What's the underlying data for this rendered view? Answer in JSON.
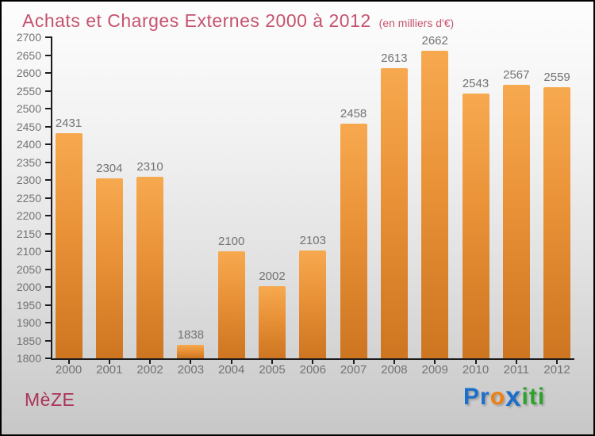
{
  "page": {
    "background_top": "#fdfdfd",
    "background_bottom": "#c7c7c7",
    "border_color": "#000000"
  },
  "header": {
    "title": "Achats et Charges Externes 2000 à 2012",
    "subtitle": "(en milliers d'€)",
    "title_color": "#c5536e"
  },
  "chart_data": {
    "type": "bar",
    "title": "Achats et Charges Externes 2000 à 2012",
    "subtitle": "(en milliers d'€)",
    "categories": [
      "2000",
      "2001",
      "2002",
      "2003",
      "2004",
      "2005",
      "2006",
      "2007",
      "2008",
      "2009",
      "2010",
      "2011",
      "2012"
    ],
    "values": [
      2431,
      2304,
      2310,
      1838,
      2100,
      2002,
      2103,
      2458,
      2613,
      2662,
      2543,
      2567,
      2559
    ],
    "xlabel": "",
    "ylabel": "",
    "ylim": [
      1800,
      2700
    ],
    "ytick_step": 50,
    "grid": false,
    "legend": "none",
    "bar_color_top": "#f7a94f",
    "bar_color_bottom": "#cd7520",
    "label_color": "#737373",
    "axis_color": "#1c1c1c"
  },
  "footer": {
    "location_label": "MèZE",
    "location_color": "#a93457",
    "logo": {
      "brand": "Proxiti",
      "letters": [
        {
          "ch": "P",
          "color": "#1c6fca",
          "big": false
        },
        {
          "ch": "r",
          "color": "#1c6fca",
          "big": false
        },
        {
          "ch": "o",
          "color": "#ee7f10",
          "big": false
        },
        {
          "ch": "x",
          "color": "#1c6fca",
          "big": true
        },
        {
          "ch": "i",
          "color": "#2da32d",
          "big": false
        },
        {
          "ch": "t",
          "color": "#2da32d",
          "big": false
        },
        {
          "ch": "i",
          "color": "#2da32d",
          "big": false
        }
      ]
    }
  }
}
